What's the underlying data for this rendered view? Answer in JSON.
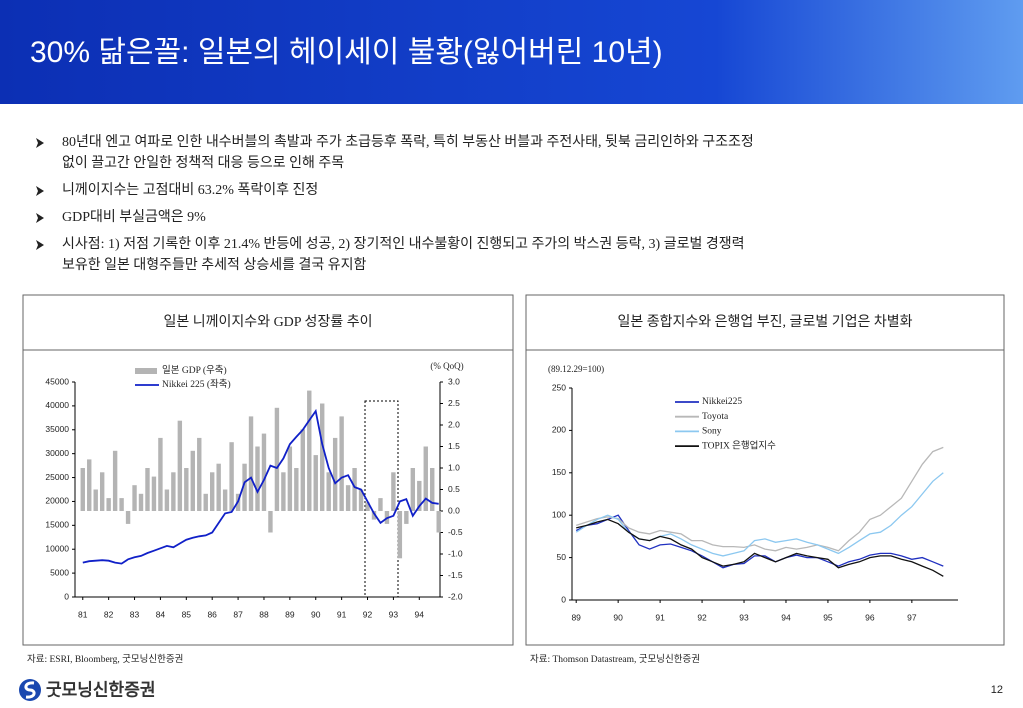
{
  "header": {
    "title": "30% 닮은꼴: 일본의 헤이세이 불황(잃어버린 10년)"
  },
  "bullets": [
    {
      "lines": [
        "80년대 엔고 여파로 인한 내수버블의 촉발과 주가 초급등후 폭락, 특히 부동산 버블과 주전사태, 뒷북 금리인하와 구조조정",
        "없이 끌고간 안일한 정책적 대응 등으로 인해 주목"
      ]
    },
    {
      "lines": [
        "니께이지수는 고점대비 63.2% 폭락이후 진정"
      ]
    },
    {
      "lines": [
        "GDP대비 부실금액은 9%"
      ]
    },
    {
      "lines": [
        "시사점: 1) 저점 기록한 이후 21.4% 반등에 성공, 2) 장기적인 내수불황이 진행되고 주가의 박스권 등락, 3) 글로벌 경쟁력",
        "보유한 일본 대형주들만 추세적 상승세를 결국 유지함"
      ]
    }
  ],
  "chart_data": [
    {
      "type": "combo",
      "title": "일본 니께이지수와 GDP 성장률 추이",
      "annotation": "(% QoQ)",
      "source": "자료: ESRI, Bloomberg, 굿모닝신한증권",
      "x": [
        81,
        81.25,
        81.5,
        81.75,
        82,
        82.25,
        82.5,
        82.75,
        83,
        83.25,
        83.5,
        83.75,
        84,
        84.25,
        84.5,
        84.75,
        85,
        85.25,
        85.5,
        85.75,
        86,
        86.25,
        86.5,
        86.75,
        87,
        87.25,
        87.5,
        87.75,
        88,
        88.25,
        88.5,
        88.75,
        89,
        89.25,
        89.5,
        89.75,
        90,
        90.25,
        90.5,
        90.75,
        91,
        91.25,
        91.5,
        91.75,
        92,
        92.25,
        92.5,
        92.75,
        93,
        93.25,
        93.5,
        93.75,
        94,
        94.25,
        94.5,
        94.75
      ],
      "xlim": [
        80.7,
        94.8
      ],
      "xticks": [
        81,
        82,
        83,
        84,
        85,
        86,
        87,
        88,
        89,
        90,
        91,
        92,
        93,
        94
      ],
      "ylim": [
        0,
        45000
      ],
      "yticks": [
        0,
        5000,
        10000,
        15000,
        20000,
        25000,
        30000,
        35000,
        40000,
        45000
      ],
      "y2lim": [
        -2,
        3
      ],
      "y2ticks": [
        {
          "value": -2,
          "label": "-2.0"
        },
        {
          "value": -1.5,
          "label": "-1.5"
        },
        {
          "value": -1,
          "label": "-1.0"
        },
        {
          "value": -0.5,
          "label": "-0.5"
        },
        {
          "value": 0,
          "label": "0.0"
        },
        {
          "value": 0.5,
          "label": "0.5"
        },
        {
          "value": 1,
          "label": "1.0"
        },
        {
          "value": 1.5,
          "label": "1.5"
        },
        {
          "value": 2,
          "label": "2.0"
        },
        {
          "value": 2.5,
          "label": "2.5"
        },
        {
          "value": 3,
          "label": "3.0"
        }
      ],
      "series": [
        {
          "name": "일본 GDP (우축)",
          "type": "bar",
          "axis": "y2",
          "color": "#b4b4b4",
          "values": [
            1.0,
            1.2,
            0.5,
            0.9,
            0.3,
            1.4,
            0.3,
            -0.3,
            0.6,
            0.4,
            1.0,
            0.8,
            1.7,
            0.5,
            0.9,
            2.1,
            1.0,
            1.4,
            1.7,
            0.4,
            0.9,
            1.1,
            0.5,
            1.6,
            0.4,
            1.1,
            2.2,
            1.5,
            1.8,
            -0.5,
            2.4,
            0.9,
            1.5,
            1.0,
            1.9,
            2.8,
            1.3,
            2.5,
            0.9,
            1.7,
            2.2,
            0.6,
            1.0,
            0.5,
            0.2,
            -0.2,
            0.3,
            -0.3,
            0.9,
            -1.1,
            -0.3,
            1.0,
            0.7,
            1.5,
            1.0,
            -0.5
          ]
        },
        {
          "name": "Nikkei 225 (좌축)",
          "type": "line",
          "color": "#1020c8",
          "values": [
            7200,
            7500,
            7600,
            7700,
            7600,
            7200,
            7000,
            7900,
            8300,
            8600,
            9200,
            9700,
            10200,
            10700,
            10400,
            11200,
            12000,
            12400,
            12700,
            12900,
            13500,
            15500,
            17500,
            17800,
            20000,
            24000,
            25000,
            22000,
            24500,
            27500,
            27000,
            29000,
            32000,
            33500,
            35000,
            37000,
            38900,
            32000,
            27000,
            23800,
            25000,
            25500,
            23000,
            22500,
            20000,
            17500,
            15500,
            16500,
            17000,
            20000,
            20500,
            17000,
            19000,
            20600,
            19700,
            19500
          ]
        }
      ]
    },
    {
      "type": "line",
      "title": "일본 종합지수와 은행업 부진, 글로벌 기업은 차별화",
      "annotation": "(89.12.29=100)",
      "source": "자료: Thomson Datastream, 굿모닝신한증권",
      "x": [
        89,
        89.25,
        89.5,
        89.75,
        90,
        90.25,
        90.5,
        90.75,
        91,
        91.25,
        91.5,
        91.75,
        92,
        92.25,
        92.5,
        92.75,
        93,
        93.25,
        93.5,
        93.75,
        94,
        94.25,
        94.5,
        94.75,
        95,
        95.25,
        95.5,
        95.75,
        96,
        96.25,
        96.5,
        96.75,
        97,
        97.25,
        97.5,
        97.75
      ],
      "xlim": [
        88.9,
        98.1
      ],
      "xticks": [
        89,
        90,
        91,
        92,
        93,
        94,
        95,
        96,
        97
      ],
      "ylim": [
        0,
        250
      ],
      "yticks": [
        0,
        50,
        100,
        150,
        200,
        250
      ],
      "series": [
        {
          "name": "Nikkei225",
          "type": "line",
          "color": "#2030c0",
          "values": [
            82,
            88,
            90,
            95,
            100,
            82,
            65,
            60,
            65,
            66,
            62,
            58,
            52,
            45,
            38,
            42,
            43,
            52,
            52,
            45,
            50,
            53,
            50,
            50,
            45,
            40,
            45,
            48,
            53,
            55,
            55,
            52,
            48,
            50,
            45,
            40
          ]
        },
        {
          "name": "Toyota",
          "type": "line",
          "color": "#b8b8b8",
          "values": [
            88,
            92,
            96,
            98,
            96,
            85,
            80,
            78,
            82,
            80,
            78,
            70,
            70,
            65,
            63,
            63,
            62,
            65,
            60,
            58,
            62,
            60,
            62,
            65,
            62,
            58,
            70,
            80,
            95,
            100,
            110,
            120,
            140,
            160,
            175,
            180
          ]
        },
        {
          "name": "Sony",
          "type": "line",
          "color": "#8cc8f0",
          "values": [
            80,
            88,
            95,
            100,
            95,
            80,
            72,
            70,
            75,
            78,
            72,
            65,
            60,
            55,
            52,
            55,
            58,
            70,
            72,
            68,
            70,
            72,
            68,
            65,
            60,
            55,
            62,
            70,
            78,
            80,
            88,
            100,
            110,
            125,
            140,
            150
          ]
        },
        {
          "name": "TOPIX 은행업지수",
          "type": "line",
          "color": "#111111",
          "values": [
            85,
            88,
            92,
            95,
            90,
            80,
            72,
            70,
            75,
            72,
            65,
            60,
            50,
            45,
            40,
            42,
            45,
            55,
            50,
            45,
            50,
            55,
            52,
            50,
            48,
            38,
            42,
            45,
            50,
            52,
            52,
            48,
            45,
            40,
            35,
            28
          ]
        }
      ]
    }
  ],
  "footer": {
    "logo": "굿모닝신한증권",
    "page": "12"
  }
}
